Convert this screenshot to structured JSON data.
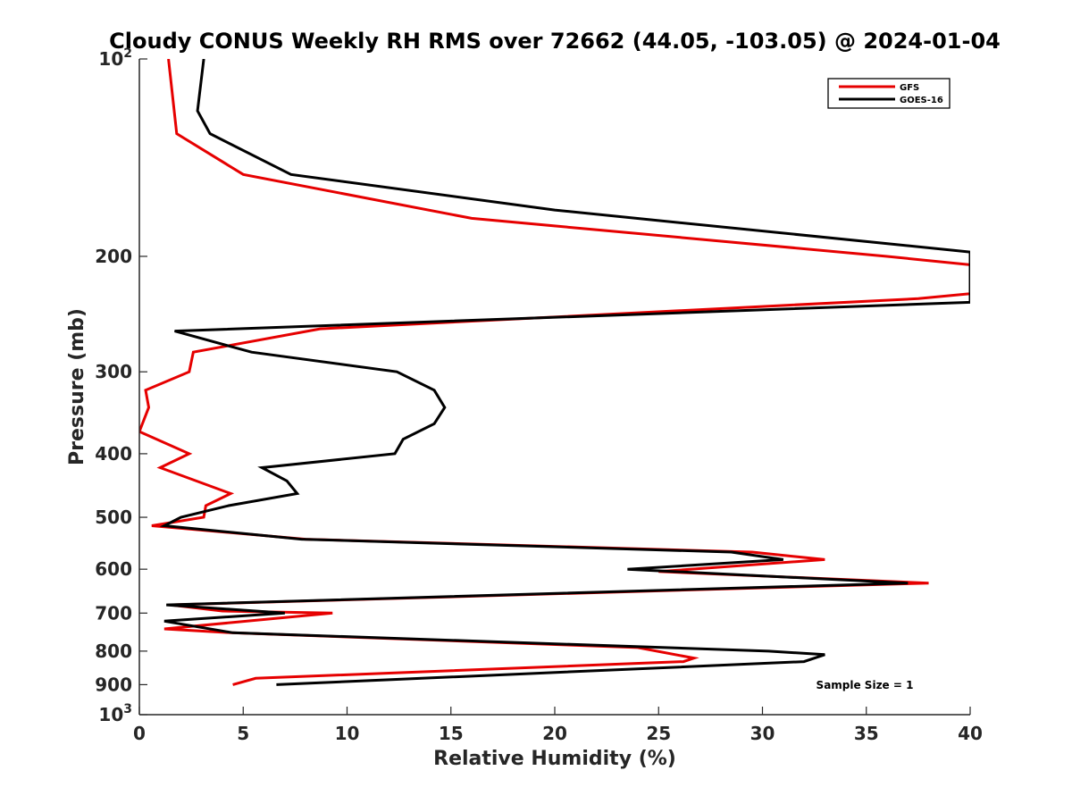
{
  "chart_data": {
    "type": "line",
    "title": "Cloudy CONUS Weekly RH RMS over 72662 (44.05, -103.05) @ 2024-01-04",
    "xlabel": "Relative Humidity (%)",
    "ylabel": "Pressure (mb)",
    "xlim": [
      0,
      40
    ],
    "ylim": [
      100,
      1000
    ],
    "yscale": "log",
    "y_reversed": true,
    "grid": false,
    "legend_position": "top-right",
    "x_ticks": [
      "0",
      "5",
      "10",
      "15",
      "20",
      "25",
      "30",
      "35",
      "40"
    ],
    "y_ticks": [
      {
        "value": 100,
        "base": "10",
        "exp": "2"
      },
      {
        "value": 200,
        "label": "200"
      },
      {
        "value": 300,
        "label": "300"
      },
      {
        "value": 400,
        "label": "400"
      },
      {
        "value": 500,
        "label": "500"
      },
      {
        "value": 600,
        "label": "600"
      },
      {
        "value": 700,
        "label": "700"
      },
      {
        "value": 800,
        "label": "800"
      },
      {
        "value": 900,
        "label": "900"
      },
      {
        "value": 1000,
        "base": "10",
        "exp": "3"
      }
    ],
    "annotation": "Sample Size = 1",
    "series": [
      {
        "name": "GFS",
        "color": "#e60000",
        "points": [
          [
            1.4,
            100
          ],
          [
            1.8,
            130
          ],
          [
            5.0,
            150
          ],
          [
            16.0,
            175
          ],
          [
            36.0,
            200
          ],
          [
            40.0,
            206
          ],
          [
            40.0,
            228
          ],
          [
            37.5,
            232
          ],
          [
            8.7,
            258
          ],
          [
            2.6,
            280
          ],
          [
            2.4,
            300
          ],
          [
            0.3,
            320
          ],
          [
            0.45,
            340
          ],
          [
            0.0,
            370
          ],
          [
            2.4,
            400
          ],
          [
            1.0,
            420
          ],
          [
            4.4,
            460
          ],
          [
            3.2,
            480
          ],
          [
            3.1,
            500
          ],
          [
            0.6,
            515
          ],
          [
            8.0,
            540
          ],
          [
            29.5,
            565
          ],
          [
            33.0,
            580
          ],
          [
            25.0,
            605
          ],
          [
            38.0,
            630
          ],
          [
            1.5,
            680
          ],
          [
            4.0,
            695
          ],
          [
            9.3,
            700
          ],
          [
            1.2,
            740
          ],
          [
            4.4,
            750
          ],
          [
            24.0,
            790
          ],
          [
            26.7,
            820
          ],
          [
            26.2,
            830
          ],
          [
            5.6,
            880
          ],
          [
            4.5,
            900
          ]
        ]
      },
      {
        "name": "GOES-16",
        "color": "#000000",
        "points": [
          [
            3.1,
            100
          ],
          [
            2.8,
            120
          ],
          [
            3.4,
            130
          ],
          [
            7.3,
            150
          ],
          [
            20.0,
            170
          ],
          [
            40.0,
            197
          ],
          [
            40.0,
            235
          ],
          [
            1.7,
            260
          ],
          [
            5.4,
            280
          ],
          [
            12.4,
            300
          ],
          [
            14.2,
            320
          ],
          [
            14.7,
            340
          ],
          [
            14.2,
            360
          ],
          [
            12.7,
            380
          ],
          [
            12.3,
            400
          ],
          [
            5.9,
            420
          ],
          [
            7.1,
            440
          ],
          [
            7.6,
            460
          ],
          [
            4.3,
            480
          ],
          [
            2.0,
            500
          ],
          [
            1.2,
            515
          ],
          [
            7.8,
            540
          ],
          [
            28.5,
            565
          ],
          [
            31.0,
            580
          ],
          [
            23.5,
            600
          ],
          [
            37.0,
            630
          ],
          [
            1.3,
            680
          ],
          [
            7.0,
            700
          ],
          [
            1.2,
            720
          ],
          [
            4.5,
            750
          ],
          [
            30.3,
            800
          ],
          [
            33.0,
            810
          ],
          [
            32.0,
            830
          ],
          [
            6.6,
            900
          ]
        ]
      }
    ]
  }
}
